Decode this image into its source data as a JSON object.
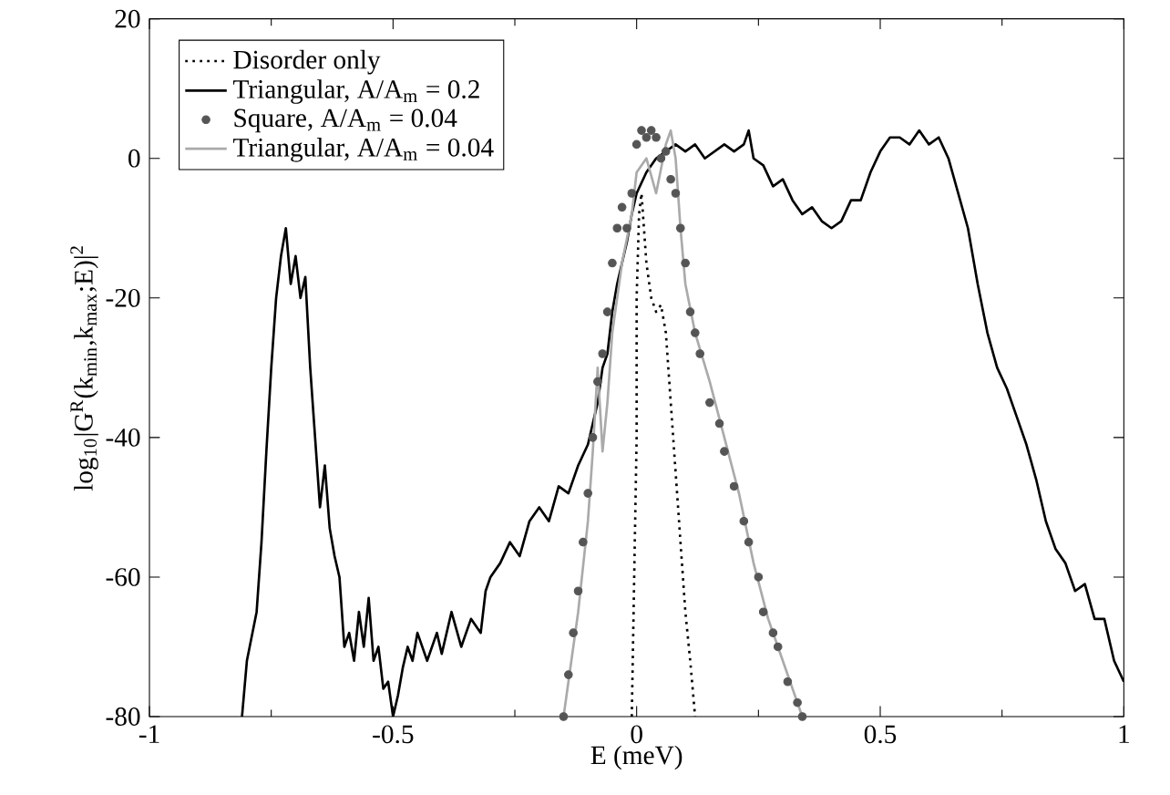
{
  "chart_data": {
    "type": "line",
    "xlabel": "E (meV)",
    "ylabel": "log$_{10}$|G$^{R}$(k$_{min}$,k$_{max}$;E)|$^{2}$",
    "xlim": [
      -1,
      1
    ],
    "ylim": [
      -80,
      20
    ],
    "xticks": [
      -1,
      -0.5,
      0,
      0.5,
      1
    ],
    "yticks": [
      -80,
      -60,
      -40,
      -20,
      0,
      20
    ],
    "legend": "top left",
    "grid": false,
    "series": [
      {
        "name": "Disorder only",
        "color": "#000000",
        "line_style": "dotted",
        "x": [
          -0.01,
          -0.005,
          0.0,
          0.0,
          0.005,
          0.01,
          0.02,
          0.03,
          0.04,
          0.05,
          0.06,
          0.07,
          0.08,
          0.09,
          0.1,
          0.11,
          0.12
        ],
        "values": [
          -80,
          -60,
          -40,
          -20,
          -8,
          -5,
          -15,
          -20,
          -22,
          -21,
          -25,
          -35,
          -45,
          -55,
          -65,
          -72,
          -80
        ]
      },
      {
        "name": "Triangular, A/A$_{m}$ = 0.2",
        "color": "#000000",
        "line_style": "solid",
        "x": [
          -0.81,
          -0.8,
          -0.78,
          -0.77,
          -0.76,
          -0.75,
          -0.74,
          -0.73,
          -0.72,
          -0.71,
          -0.7,
          -0.69,
          -0.68,
          -0.67,
          -0.66,
          -0.65,
          -0.64,
          -0.63,
          -0.62,
          -0.61,
          -0.6,
          -0.59,
          -0.58,
          -0.57,
          -0.56,
          -0.55,
          -0.54,
          -0.53,
          -0.52,
          -0.51,
          -0.5,
          -0.49,
          -0.48,
          -0.47,
          -0.46,
          -0.45,
          -0.43,
          -0.41,
          -0.4,
          -0.38,
          -0.36,
          -0.34,
          -0.32,
          -0.31,
          -0.3,
          -0.28,
          -0.26,
          -0.24,
          -0.22,
          -0.2,
          -0.18,
          -0.16,
          -0.14,
          -0.12,
          -0.1,
          -0.09,
          -0.08,
          -0.07,
          -0.06,
          -0.05,
          -0.04,
          -0.03,
          -0.02,
          -0.01,
          0.0,
          0.02,
          0.04,
          0.06,
          0.08,
          0.1,
          0.12,
          0.14,
          0.16,
          0.18,
          0.2,
          0.22,
          0.23,
          0.24,
          0.26,
          0.28,
          0.3,
          0.32,
          0.34,
          0.36,
          0.38,
          0.4,
          0.42,
          0.44,
          0.46,
          0.48,
          0.5,
          0.52,
          0.54,
          0.56,
          0.58,
          0.6,
          0.62,
          0.64,
          0.66,
          0.68,
          0.7,
          0.72,
          0.74,
          0.76,
          0.78,
          0.8,
          0.82,
          0.84,
          0.86,
          0.88,
          0.9,
          0.92,
          0.94,
          0.96,
          0.98,
          1.0
        ],
        "values": [
          -80,
          -72,
          -65,
          -55,
          -42,
          -30,
          -20,
          -14,
          -10,
          -18,
          -14,
          -20,
          -17,
          -30,
          -40,
          -50,
          -44,
          -53,
          -57,
          -60,
          -70,
          -68,
          -72,
          -65,
          -70,
          -63,
          -72,
          -70,
          -76,
          -75,
          -80,
          -77,
          -73,
          -70,
          -72,
          -68,
          -72,
          -68,
          -71,
          -65,
          -70,
          -66,
          -68,
          -62,
          -60,
          -58,
          -55,
          -57,
          -52,
          -50,
          -52,
          -47,
          -48,
          -44,
          -41,
          -38,
          -35,
          -30,
          -28,
          -22,
          -18,
          -15,
          -12,
          -8,
          -5,
          -2,
          0,
          1,
          2,
          1,
          2,
          0,
          1,
          2,
          1,
          2,
          4,
          0,
          -1,
          -4,
          -3,
          -6,
          -8,
          -7,
          -9,
          -10,
          -9,
          -6,
          -6,
          -2,
          1,
          3,
          3,
          2,
          4,
          2,
          3,
          0,
          -5,
          -10,
          -18,
          -25,
          -30,
          -33,
          -37,
          -41,
          -46,
          -52,
          -56,
          -58,
          -62,
          -61,
          -66,
          -66,
          -72,
          -75
        ]
      },
      {
        "name": "Square, A/A$_{m}$ = 0.04",
        "color": "#555555",
        "type": "scatter",
        "marker": "circle",
        "x": [
          -0.15,
          -0.14,
          -0.13,
          -0.12,
          -0.11,
          -0.1,
          -0.09,
          -0.08,
          -0.07,
          -0.06,
          -0.05,
          -0.04,
          -0.03,
          -0.02,
          -0.01,
          0.0,
          0.01,
          0.02,
          0.03,
          0.04,
          0.05,
          0.06,
          0.07,
          0.08,
          0.09,
          0.1,
          0.11,
          0.12,
          0.13,
          0.15,
          0.17,
          0.18,
          0.2,
          0.22,
          0.23,
          0.25,
          0.26,
          0.28,
          0.29,
          0.31,
          0.33,
          0.34
        ],
        "values": [
          -80,
          -74,
          -68,
          -62,
          -55,
          -48,
          -40,
          -32,
          -28,
          -22,
          -15,
          -10,
          -7,
          -10,
          -5,
          2,
          4,
          3,
          4,
          3,
          0,
          1,
          -3,
          -5,
          -10,
          -15,
          -22,
          -25,
          -28,
          -35,
          -38,
          -42,
          -47,
          -52,
          -55,
          -60,
          -65,
          -68,
          -70,
          -75,
          -78,
          -80
        ]
      },
      {
        "name": "Triangular, A/A$_{m}$ = 0.04",
        "color": "#aaaaaa",
        "line_style": "solid",
        "x": [
          -0.15,
          -0.12,
          -0.1,
          -0.09,
          -0.08,
          -0.07,
          -0.06,
          -0.05,
          -0.03,
          -0.01,
          0.0,
          0.02,
          0.04,
          0.06,
          0.07,
          0.08,
          0.09,
          0.1,
          0.12,
          0.15,
          0.18,
          0.21,
          0.24,
          0.27,
          0.3,
          0.32,
          0.34
        ],
        "values": [
          -80,
          -65,
          -52,
          -42,
          -30,
          -42,
          -35,
          -25,
          -15,
          -8,
          -2,
          0,
          -5,
          2,
          4,
          0,
          -10,
          -18,
          -25,
          -32,
          -40,
          -48,
          -58,
          -66,
          -72,
          -76,
          -80
        ]
      }
    ]
  }
}
